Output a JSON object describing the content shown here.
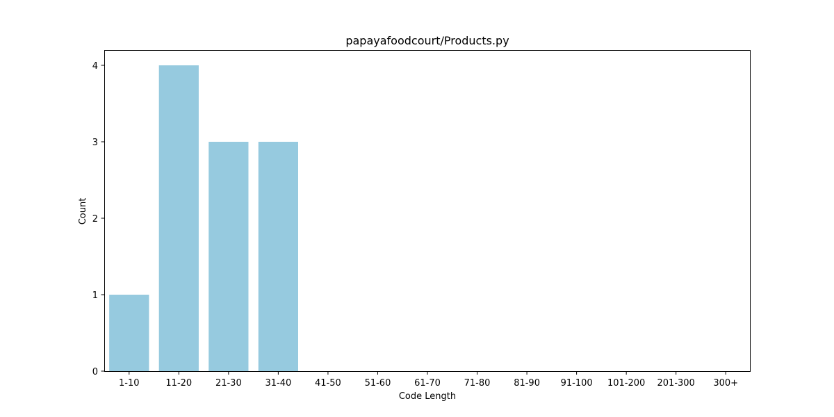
{
  "chart_data": {
    "type": "bar",
    "title": "papayafoodcourt/Products.py",
    "xlabel": "Code Length",
    "ylabel": "Count",
    "categories": [
      "1-10",
      "11-20",
      "21-30",
      "31-40",
      "41-50",
      "51-60",
      "61-70",
      "71-80",
      "81-90",
      "91-100",
      "101-200",
      "201-300",
      "300+"
    ],
    "values": [
      1,
      4,
      3,
      3,
      0,
      0,
      0,
      0,
      0,
      0,
      0,
      0,
      0
    ],
    "ylim": [
      0,
      4.2
    ],
    "yticks": [
      "0",
      "1",
      "2",
      "3",
      "4"
    ],
    "grid": false,
    "bar_color": "#96cadf"
  }
}
